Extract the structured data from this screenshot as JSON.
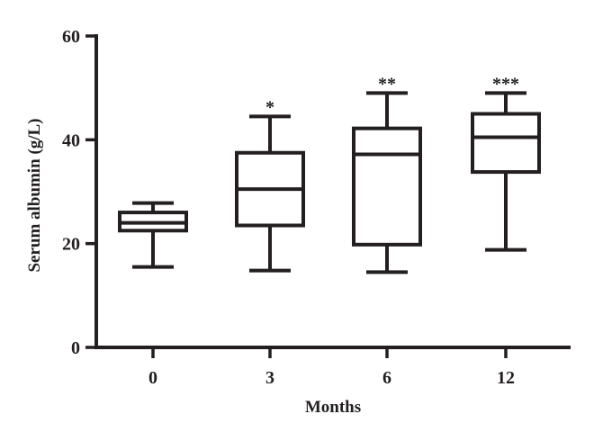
{
  "chart_data": {
    "type": "box",
    "title": "",
    "xlabel": "Months",
    "ylabel": "Serum albumin (g/L)",
    "ylim": [
      0,
      60
    ],
    "yticks": [
      0,
      20,
      40,
      60
    ],
    "categories": [
      "0",
      "3",
      "6",
      "12"
    ],
    "grid": false,
    "legend": "none",
    "boxes": [
      {
        "category": "0",
        "min": 15.5,
        "q1": 22.5,
        "median": 24.0,
        "q3": 26.0,
        "max": 27.8,
        "significance": ""
      },
      {
        "category": "3",
        "min": 14.8,
        "q1": 23.5,
        "median": 30.5,
        "q3": 37.5,
        "max": 44.5,
        "significance": "*"
      },
      {
        "category": "6",
        "min": 14.5,
        "q1": 19.8,
        "median": 37.2,
        "q3": 42.2,
        "max": 49.0,
        "significance": "**"
      },
      {
        "category": "12",
        "min": 18.8,
        "q1": 33.8,
        "median": 40.5,
        "q3": 45.0,
        "max": 49.0,
        "significance": "***"
      }
    ]
  }
}
